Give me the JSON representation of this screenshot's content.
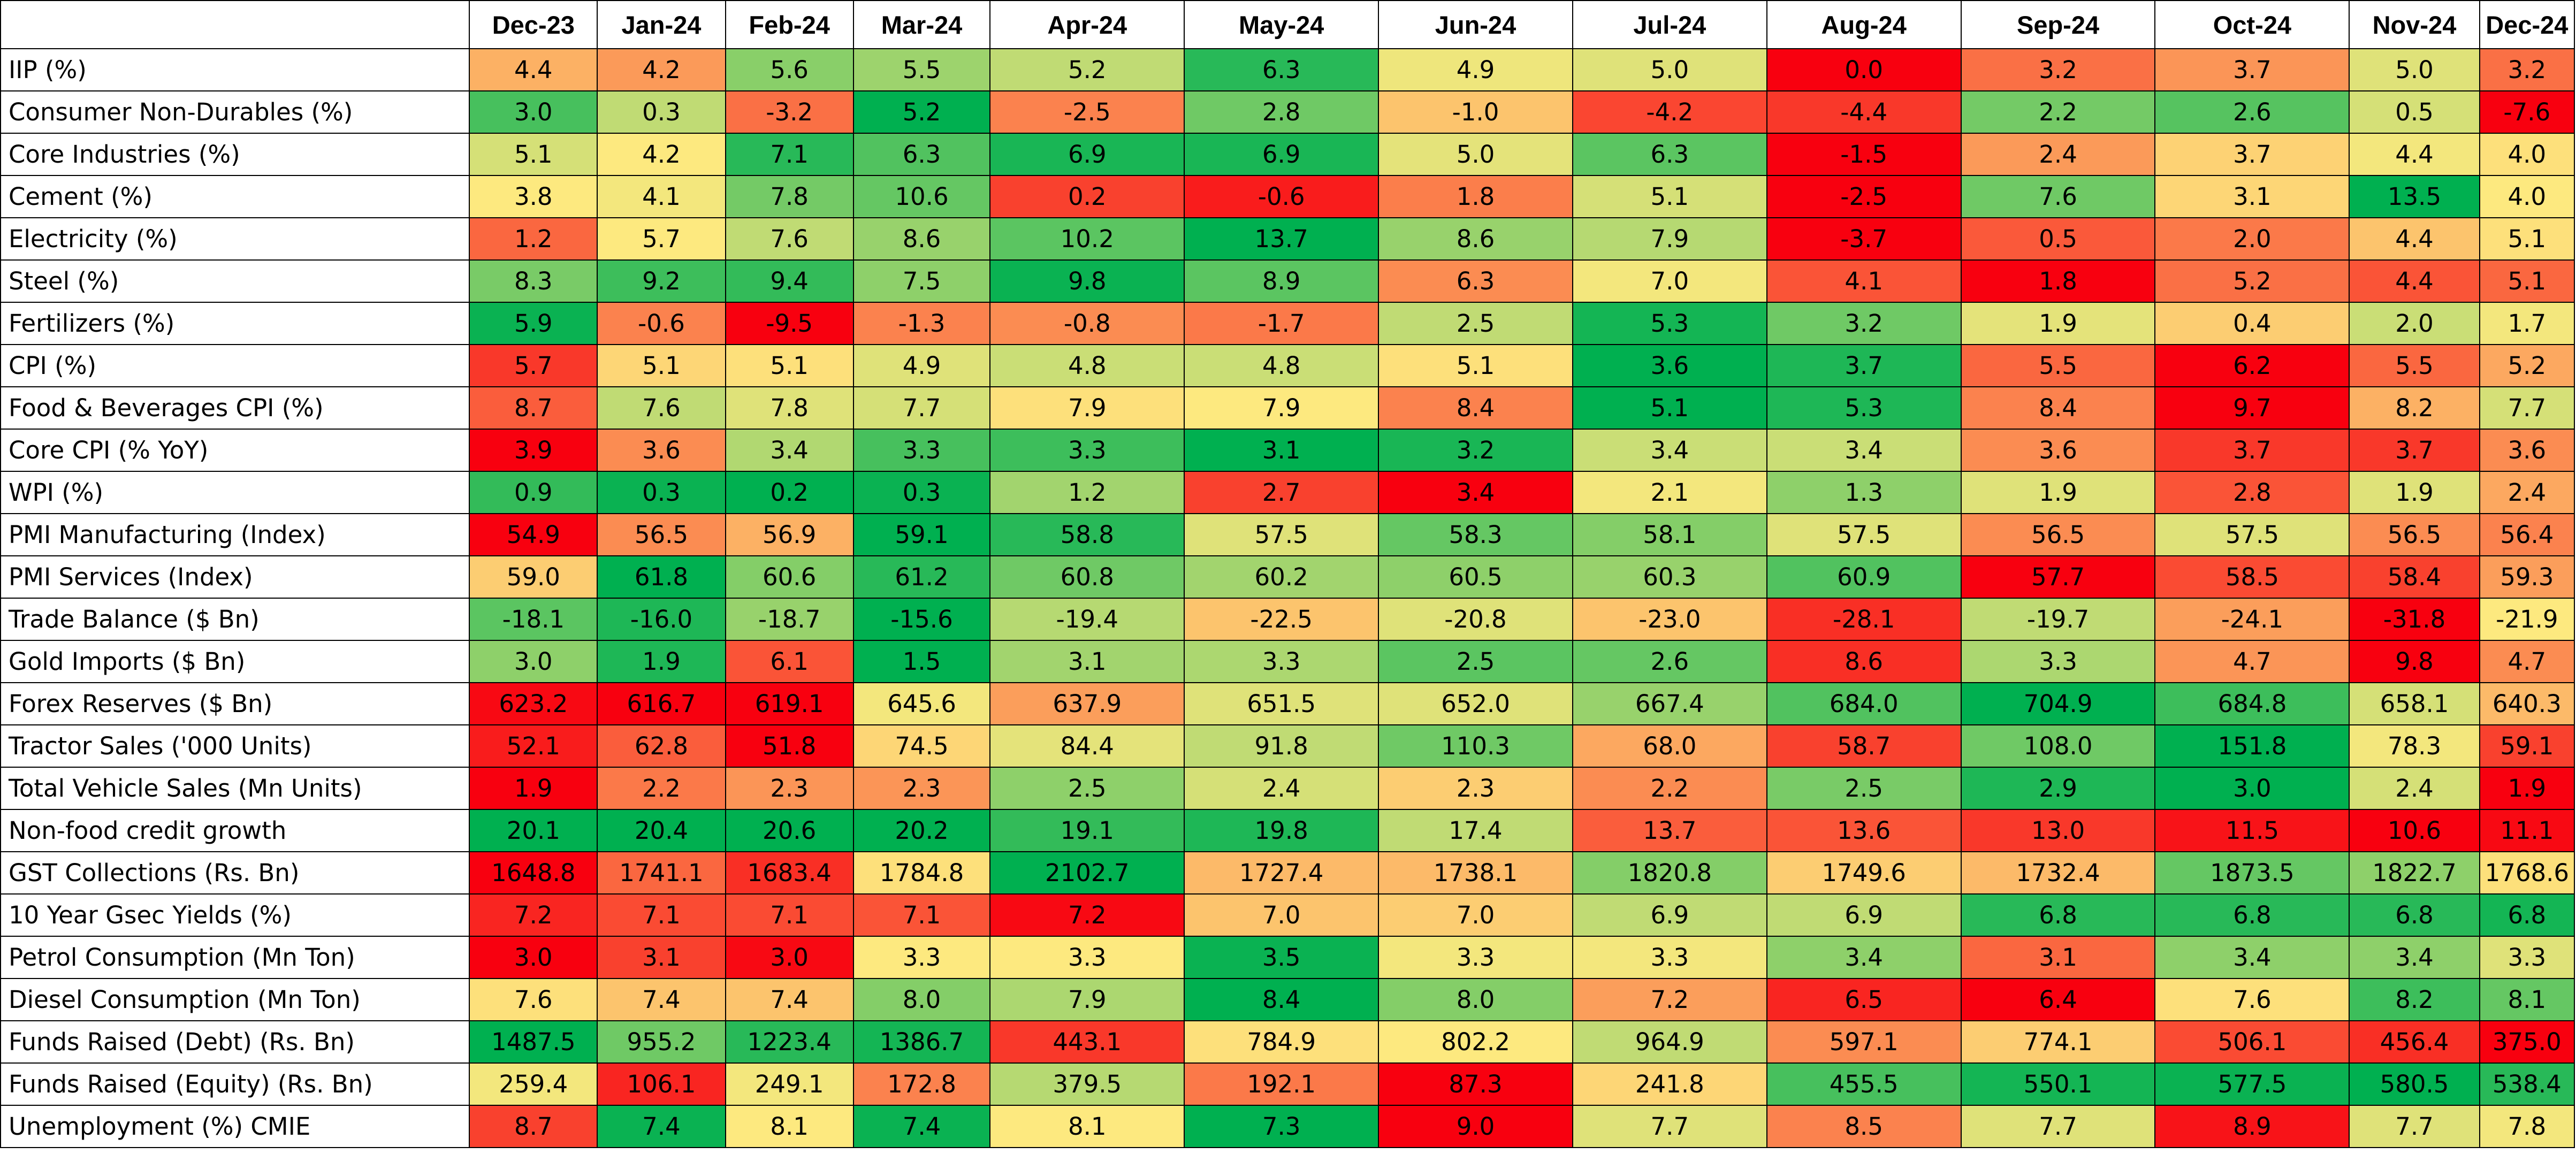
{
  "chart_data": {
    "type": "heatmap",
    "color_scale": [
      "#f8000f",
      "#fde97f",
      "#00b050"
    ],
    "columns": [
      "Dec-23",
      "Jan-24",
      "Feb-24",
      "Mar-24",
      "Apr-24",
      "May-24",
      "Jun-24",
      "Jul-24",
      "Aug-24",
      "Sep-24",
      "Oct-24",
      "Nov-24",
      "Dec-24"
    ],
    "rows": [
      {
        "label": "IIP (%)",
        "values": [
          "4.4",
          "4.2",
          "5.6",
          "5.5",
          "5.2",
          "6.3",
          "4.9",
          "5.0",
          "0.0",
          "3.2",
          "3.7",
          "5.0",
          "3.2"
        ]
      },
      {
        "label": "Consumer Non-Durables (%)",
        "values": [
          "3.0",
          "0.3",
          "-3.2",
          "5.2",
          "-2.5",
          "2.8",
          "-1.0",
          "-4.2",
          "-4.4",
          "2.2",
          "2.6",
          "0.5",
          "-7.6"
        ]
      },
      {
        "label": "Core Industries (%)",
        "values": [
          "5.1",
          "4.2",
          "7.1",
          "6.3",
          "6.9",
          "6.9",
          "5.0",
          "6.3",
          "-1.5",
          "2.4",
          "3.7",
          "4.4",
          "4.0"
        ]
      },
      {
        "label": "Cement (%)",
        "values": [
          "3.8",
          "4.1",
          "7.8",
          "10.6",
          "0.2",
          "-0.6",
          "1.8",
          "5.1",
          "-2.5",
          "7.6",
          "3.1",
          "13.5",
          "4.0"
        ]
      },
      {
        "label": "Electricity (%)",
        "values": [
          "1.2",
          "5.7",
          "7.6",
          "8.6",
          "10.2",
          "13.7",
          "8.6",
          "7.9",
          "-3.7",
          "0.5",
          "2.0",
          "4.4",
          "5.1"
        ]
      },
      {
        "label": "Steel (%)",
        "values": [
          "8.3",
          "9.2",
          "9.4",
          "7.5",
          "9.8",
          "8.9",
          "6.3",
          "7.0",
          "4.1",
          "1.8",
          "5.2",
          "4.4",
          "5.1"
        ]
      },
      {
        "label": "Fertilizers (%)",
        "values": [
          "5.9",
          "-0.6",
          "-9.5",
          "-1.3",
          "-0.8",
          "-1.7",
          "2.5",
          "5.3",
          "3.2",
          "1.9",
          "0.4",
          "2.0",
          "1.7"
        ]
      },
      {
        "label": "CPI (%)",
        "values": [
          "5.7",
          "5.1",
          "5.1",
          "4.9",
          "4.8",
          "4.8",
          "5.1",
          "3.6",
          "3.7",
          "5.5",
          "6.2",
          "5.5",
          "5.2"
        ]
      },
      {
        "label": "Food & Beverages CPI (%)",
        "values": [
          "8.7",
          "7.6",
          "7.8",
          "7.7",
          "7.9",
          "7.9",
          "8.4",
          "5.1",
          "5.3",
          "8.4",
          "9.7",
          "8.2",
          "7.7"
        ]
      },
      {
        "label": "Core CPI (% YoY)",
        "values": [
          "3.9",
          "3.6",
          "3.4",
          "3.3",
          "3.3",
          "3.1",
          "3.2",
          "3.4",
          "3.4",
          "3.6",
          "3.7",
          "3.7",
          "3.6"
        ]
      },
      {
        "label": "WPI (%)",
        "values": [
          "0.9",
          "0.3",
          "0.2",
          "0.3",
          "1.2",
          "2.7",
          "3.4",
          "2.1",
          "1.3",
          "1.9",
          "2.8",
          "1.9",
          "2.4"
        ]
      },
      {
        "label": "PMI Manufacturing (Index)",
        "values": [
          "54.9",
          "56.5",
          "56.9",
          "59.1",
          "58.8",
          "57.5",
          "58.3",
          "58.1",
          "57.5",
          "56.5",
          "57.5",
          "56.5",
          "56.4"
        ]
      },
      {
        "label": "PMI Services (Index)",
        "values": [
          "59.0",
          "61.8",
          "60.6",
          "61.2",
          "60.8",
          "60.2",
          "60.5",
          "60.3",
          "60.9",
          "57.7",
          "58.5",
          "58.4",
          "59.3"
        ]
      },
      {
        "label": "Trade Balance ($ Bn)",
        "values": [
          "-18.1",
          "-16.0",
          "-18.7",
          "-15.6",
          "-19.4",
          "-22.5",
          "-20.8",
          "-23.0",
          "-28.1",
          "-19.7",
          "-24.1",
          "-31.8",
          "-21.9"
        ]
      },
      {
        "label": "Gold Imports ($ Bn)",
        "values": [
          "3.0",
          "1.9",
          "6.1",
          "1.5",
          "3.1",
          "3.3",
          "2.5",
          "2.6",
          "8.6",
          "3.3",
          "4.7",
          "9.8",
          "4.7"
        ]
      },
      {
        "label": "Forex Reserves ($ Bn)",
        "values": [
          "623.2",
          "616.7",
          "619.1",
          "645.6",
          "637.9",
          "651.5",
          "652.0",
          "667.4",
          "684.0",
          "704.9",
          "684.8",
          "658.1",
          "640.3"
        ]
      },
      {
        "label": "Tractor Sales ('000 Units)",
        "values": [
          "52.1",
          "62.8",
          "51.8",
          "74.5",
          "84.4",
          "91.8",
          "110.3",
          "68.0",
          "58.7",
          "108.0",
          "151.8",
          "78.3",
          "59.1"
        ]
      },
      {
        "label": "Total Vehicle Sales (Mn Units)",
        "values": [
          "1.9",
          "2.2",
          "2.3",
          "2.3",
          "2.5",
          "2.4",
          "2.3",
          "2.2",
          "2.5",
          "2.9",
          "3.0",
          "2.4",
          "1.9"
        ]
      },
      {
        "label": "Non-food credit growth",
        "values": [
          "20.1",
          "20.4",
          "20.6",
          "20.2",
          "19.1",
          "19.8",
          "17.4",
          "13.7",
          "13.6",
          "13.0",
          "11.5",
          "10.6",
          "11.1"
        ]
      },
      {
        "label": "GST Collections (Rs. Bn)",
        "values": [
          "1648.8",
          "1741.1",
          "1683.4",
          "1784.8",
          "2102.7",
          "1727.4",
          "1738.1",
          "1820.8",
          "1749.6",
          "1732.4",
          "1873.5",
          "1822.7",
          "1768.6"
        ]
      },
      {
        "label": "10 Year Gsec Yields (%)",
        "values": [
          "7.2",
          "7.1",
          "7.1",
          "7.1",
          "7.2",
          "7.0",
          "7.0",
          "6.9",
          "6.9",
          "6.8",
          "6.8",
          "6.8",
          "6.8"
        ]
      },
      {
        "label": "Petrol Consumption (Mn Ton)",
        "values": [
          "3.0",
          "3.1",
          "3.0",
          "3.3",
          "3.3",
          "3.5",
          "3.3",
          "3.3",
          "3.4",
          "3.1",
          "3.4",
          "3.4",
          "3.3"
        ]
      },
      {
        "label": "Diesel Consumption (Mn Ton)",
        "values": [
          "7.6",
          "7.4",
          "7.4",
          "8.0",
          "7.9",
          "8.4",
          "8.0",
          "7.2",
          "6.5",
          "6.4",
          "7.6",
          "8.2",
          "8.1"
        ]
      },
      {
        "label": "Funds Raised (Debt) (Rs. Bn)",
        "values": [
          "1487.5",
          "955.2",
          "1223.4",
          "1386.7",
          "443.1",
          "784.9",
          "802.2",
          "964.9",
          "597.1",
          "774.1",
          "506.1",
          "456.4",
          "375.0"
        ]
      },
      {
        "label": "Funds Raised (Equity) (Rs. Bn)",
        "values": [
          "259.4",
          "106.1",
          "249.1",
          "172.8",
          "379.5",
          "192.1",
          "87.3",
          "241.8",
          "455.5",
          "550.1",
          "577.5",
          "580.5",
          "538.4"
        ]
      },
      {
        "label": "Unemployment (%) CMIE",
        "values": [
          "8.7",
          "7.4",
          "8.1",
          "7.4",
          "8.1",
          "7.3",
          "9.0",
          "7.7",
          "8.5",
          "7.7",
          "8.9",
          "7.7",
          "7.8"
        ]
      }
    ],
    "cell_scores": [
      [
        0.38,
        0.33,
        0.73,
        0.69,
        0.62,
        0.92,
        0.53,
        0.56,
        0.0,
        0.24,
        0.32,
        0.56,
        0.24
      ],
      [
        0.86,
        0.62,
        0.24,
        1.0,
        0.28,
        0.78,
        0.42,
        0.15,
        0.12,
        0.77,
        0.83,
        0.58,
        0.0
      ],
      [
        0.58,
        0.5,
        0.92,
        0.84,
        0.95,
        0.95,
        0.55,
        0.82,
        0.0,
        0.33,
        0.45,
        0.52,
        0.48
      ],
      [
        0.5,
        0.52,
        0.77,
        0.8,
        0.14,
        0.06,
        0.27,
        0.58,
        0.0,
        0.78,
        0.46,
        1.0,
        0.5
      ],
      [
        0.22,
        0.5,
        0.62,
        0.7,
        0.82,
        1.0,
        0.7,
        0.64,
        0.0,
        0.19,
        0.26,
        0.42,
        0.48
      ],
      [
        0.76,
        0.88,
        0.9,
        0.72,
        0.98,
        0.82,
        0.3,
        0.52,
        0.18,
        0.0,
        0.24,
        0.18,
        0.22
      ],
      [
        0.98,
        0.28,
        0.0,
        0.28,
        0.3,
        0.26,
        0.62,
        0.96,
        0.78,
        0.55,
        0.44,
        0.6,
        0.52
      ],
      [
        0.12,
        0.46,
        0.48,
        0.56,
        0.6,
        0.6,
        0.48,
        1.0,
        0.94,
        0.22,
        0.0,
        0.22,
        0.36
      ],
      [
        0.2,
        0.62,
        0.56,
        0.58,
        0.48,
        0.5,
        0.28,
        1.0,
        0.94,
        0.28,
        0.0,
        0.38,
        0.58
      ],
      [
        0.0,
        0.3,
        0.65,
        0.86,
        0.88,
        1.0,
        0.95,
        0.6,
        0.6,
        0.3,
        0.12,
        0.12,
        0.3
      ],
      [
        0.9,
        0.98,
        1.0,
        0.98,
        0.68,
        0.14,
        0.0,
        0.52,
        0.72,
        0.56,
        0.18,
        0.56,
        0.36
      ],
      [
        0.0,
        0.3,
        0.38,
        1.0,
        0.92,
        0.56,
        0.8,
        0.74,
        0.56,
        0.3,
        0.56,
        0.3,
        0.28
      ],
      [
        0.44,
        1.0,
        0.74,
        0.92,
        0.78,
        0.68,
        0.72,
        0.7,
        0.84,
        0.0,
        0.16,
        0.14,
        0.34
      ],
      [
        0.82,
        0.94,
        0.7,
        1.0,
        0.64,
        0.42,
        0.56,
        0.42,
        0.1,
        0.62,
        0.34,
        0.0,
        0.5
      ],
      [
        0.72,
        0.94,
        0.18,
        1.0,
        0.68,
        0.66,
        0.82,
        0.8,
        0.1,
        0.66,
        0.32,
        0.0,
        0.3
      ],
      [
        0.02,
        0.0,
        0.0,
        0.52,
        0.34,
        0.56,
        0.56,
        0.7,
        0.84,
        1.0,
        0.88,
        0.58,
        0.4
      ],
      [
        0.06,
        0.2,
        0.0,
        0.46,
        0.55,
        0.62,
        0.78,
        0.36,
        0.14,
        0.78,
        1.0,
        0.52,
        0.14
      ],
      [
        0.0,
        0.26,
        0.32,
        0.32,
        0.72,
        0.58,
        0.44,
        0.3,
        0.76,
        0.94,
        1.0,
        0.58,
        0.0
      ],
      [
        1.0,
        1.0,
        1.0,
        1.0,
        0.9,
        0.94,
        0.62,
        0.2,
        0.18,
        0.12,
        0.04,
        0.0,
        0.02
      ],
      [
        0.0,
        0.22,
        0.1,
        0.48,
        1.0,
        0.4,
        0.4,
        0.74,
        0.44,
        0.4,
        0.8,
        0.72,
        0.48
      ],
      [
        0.08,
        0.16,
        0.16,
        0.18,
        0.02,
        0.42,
        0.44,
        0.62,
        0.62,
        0.92,
        0.92,
        0.92,
        0.96
      ],
      [
        0.0,
        0.14,
        0.02,
        0.5,
        0.5,
        0.98,
        0.52,
        0.52,
        0.72,
        0.22,
        0.72,
        0.72,
        0.56
      ],
      [
        0.48,
        0.42,
        0.42,
        0.74,
        0.66,
        1.0,
        0.74,
        0.34,
        0.08,
        0.0,
        0.48,
        0.88,
        0.8
      ],
      [
        1.0,
        0.78,
        0.92,
        0.96,
        0.12,
        0.48,
        0.5,
        0.62,
        0.3,
        0.44,
        0.16,
        0.1,
        0.0
      ],
      [
        0.52,
        0.08,
        0.52,
        0.28,
        0.64,
        0.26,
        0.0,
        0.46,
        0.86,
        0.96,
        0.98,
        1.0,
        0.92
      ],
      [
        0.14,
        0.98,
        0.5,
        0.98,
        0.5,
        1.0,
        0.0,
        0.56,
        0.28,
        0.56,
        0.04,
        0.56,
        0.52
      ]
    ]
  }
}
